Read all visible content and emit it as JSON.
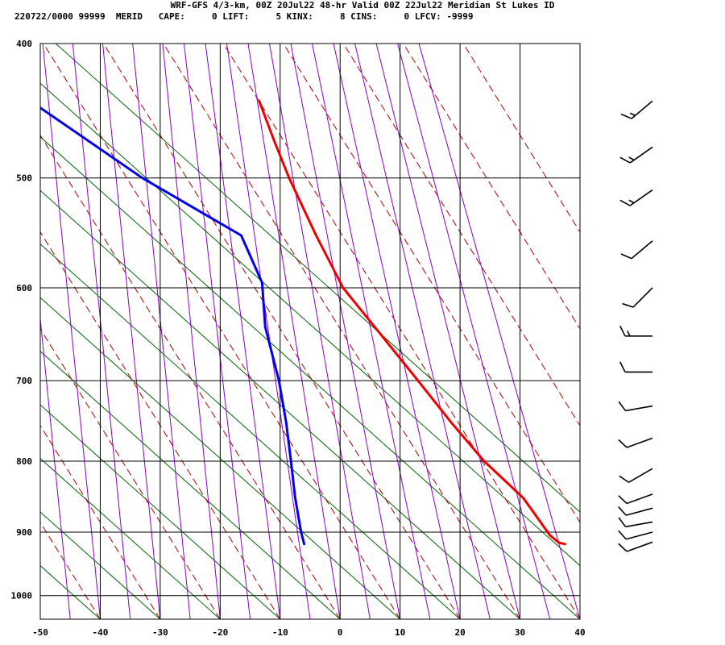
{
  "header": {
    "title": "WRF-GFS 4/3-km, 00Z 20Jul22 48-hr Valid 00Z 22Jul22 Meridian St Lukes ID",
    "indices": "220722/0000 99999  MERID   CAPE:     0 LIFT:     5 KINX:     8 CINS:     0 LFCV: -9999"
  },
  "colors": {
    "temperature": "#ee0000",
    "dewpoint": "#0000ee",
    "dry_adiabat": "#aa0000",
    "moist_adiabat": "#8800cc",
    "isotherm_skew": "#006600",
    "grid": "#000000",
    "barbs": "#000000"
  },
  "chart_data": {
    "type": "line",
    "title": "",
    "xlabel": "",
    "ylabel": "",
    "xlim": [
      -50,
      40
    ],
    "ylim_pressure": [
      1040,
      400
    ],
    "x_ticks": [
      -50,
      -40,
      -30,
      -20,
      -10,
      0,
      10,
      20,
      30,
      40
    ],
    "y_ticks": [
      400,
      500,
      600,
      700,
      800,
      900,
      1000
    ],
    "series": [
      {
        "key": "temperature",
        "points": [
          {
            "p": 918,
            "x": 37.5
          },
          {
            "p": 916,
            "x": 36.5
          },
          {
            "p": 905,
            "x": 35.0
          },
          {
            "p": 880,
            "x": 33.0
          },
          {
            "p": 850,
            "x": 30.5
          },
          {
            "p": 800,
            "x": 24.0
          },
          {
            "p": 750,
            "x": 18.5
          },
          {
            "p": 700,
            "x": 13.0
          },
          {
            "p": 650,
            "x": 7.0
          },
          {
            "p": 600,
            "x": 0.5
          },
          {
            "p": 550,
            "x": -4.0
          },
          {
            "p": 500,
            "x": -8.5
          },
          {
            "p": 470,
            "x": -11.0
          },
          {
            "p": 440,
            "x": -13.5
          }
        ]
      },
      {
        "key": "dewpoint",
        "points": [
          {
            "p": 918,
            "x": -6.0
          },
          {
            "p": 900,
            "x": -6.5
          },
          {
            "p": 850,
            "x": -7.5
          },
          {
            "p": 800,
            "x": -8.2
          },
          {
            "p": 750,
            "x": -9.0
          },
          {
            "p": 700,
            "x": -10.2
          },
          {
            "p": 640,
            "x": -12.5
          },
          {
            "p": 595,
            "x": -13.0
          },
          {
            "p": 550,
            "x": -16.5
          },
          {
            "p": 500,
            "x": -33.0
          },
          {
            "p": 445,
            "x": -50.0
          }
        ]
      }
    ],
    "wind_barbs": [
      {
        "p": 440,
        "dir": 230,
        "spd": 15
      },
      {
        "p": 475,
        "dir": 235,
        "spd": 15
      },
      {
        "p": 510,
        "dir": 235,
        "spd": 15
      },
      {
        "p": 555,
        "dir": 230,
        "spd": 10
      },
      {
        "p": 600,
        "dir": 225,
        "spd": 10
      },
      {
        "p": 650,
        "dir": 270,
        "spd": 15
      },
      {
        "p": 690,
        "dir": 270,
        "spd": 10
      },
      {
        "p": 730,
        "dir": 260,
        "spd": 10
      },
      {
        "p": 770,
        "dir": 250,
        "spd": 10
      },
      {
        "p": 810,
        "dir": 240,
        "spd": 10
      },
      {
        "p": 845,
        "dir": 250,
        "spd": 10
      },
      {
        "p": 865,
        "dir": 255,
        "spd": 10
      },
      {
        "p": 885,
        "dir": 260,
        "spd": 10
      },
      {
        "p": 900,
        "dir": 255,
        "spd": 10
      },
      {
        "p": 915,
        "dir": 250,
        "spd": 10
      }
    ]
  }
}
